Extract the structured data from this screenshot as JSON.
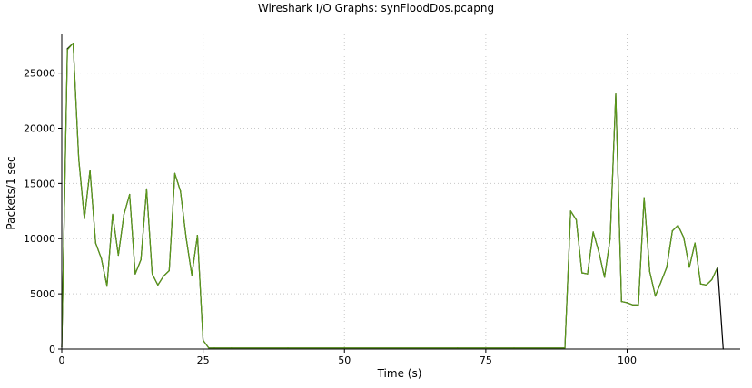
{
  "chart_data": {
    "type": "line",
    "title": "Wireshark I/O Graphs: synFloodDos.pcapng",
    "xlabel": "Time (s)",
    "ylabel": "Packets/1 sec",
    "xlim": [
      0,
      120
    ],
    "ylim": [
      0,
      28500
    ],
    "xticks": [
      "0",
      "25",
      "50",
      "75",
      "100"
    ],
    "yticks": [
      "0",
      "5000",
      "10000",
      "15000",
      "20000",
      "25000"
    ],
    "grid": true,
    "colors": {
      "all_packets": "#000000",
      "syn_packets": "#5b9a1a"
    },
    "series": [
      {
        "color_key": "all_packets",
        "x": [
          0,
          1,
          2,
          3,
          4,
          5,
          6,
          7,
          8,
          9,
          10,
          11,
          12,
          13,
          14,
          15,
          16,
          17,
          18,
          19,
          20,
          21,
          22,
          23,
          24,
          25,
          26,
          27,
          30,
          40,
          50,
          60,
          70,
          80,
          89,
          90,
          91,
          92,
          93,
          94,
          95,
          96,
          97,
          98,
          99,
          100,
          101,
          102,
          103,
          104,
          105,
          106,
          107,
          108,
          109,
          110,
          111,
          112,
          113,
          114,
          115,
          116,
          117
        ],
        "values": [
          200,
          27200,
          27700,
          17200,
          11800,
          16200,
          9600,
          8200,
          5700,
          12200,
          8500,
          12200,
          14000,
          6800,
          8100,
          14500,
          6800,
          5800,
          6600,
          7100,
          15900,
          14300,
          10100,
          6700,
          10300,
          800,
          100,
          100,
          100,
          100,
          100,
          100,
          100,
          100,
          100,
          12500,
          11700,
          6900,
          6800,
          10600,
          8800,
          6500,
          10000,
          23100,
          4300,
          4200,
          4000,
          4000,
          13700,
          7000,
          4800,
          6100,
          7400,
          10700,
          11200,
          10100,
          7400,
          9600,
          5900,
          5800,
          6300,
          7400,
          0
        ]
      },
      {
        "color_key": "syn_packets",
        "x": [
          0,
          1,
          2,
          3,
          4,
          5,
          6,
          7,
          8,
          9,
          10,
          11,
          12,
          13,
          14,
          15,
          16,
          17,
          18,
          19,
          20,
          21,
          22,
          23,
          24,
          25,
          26,
          27,
          30,
          40,
          50,
          60,
          70,
          80,
          89,
          90,
          91,
          92,
          93,
          94,
          95,
          96,
          97,
          98,
          99,
          100,
          101,
          102,
          103,
          104,
          105,
          106,
          107,
          108,
          109,
          110,
          111,
          112,
          113,
          114,
          115,
          116
        ],
        "values": [
          200,
          27100,
          27700,
          17200,
          11800,
          16200,
          9600,
          8200,
          5700,
          12200,
          8500,
          12200,
          14000,
          6800,
          8100,
          14500,
          6800,
          5800,
          6600,
          7100,
          15900,
          14300,
          10100,
          6700,
          10300,
          800,
          100,
          100,
          100,
          100,
          100,
          100,
          100,
          100,
          100,
          12500,
          11700,
          6900,
          6800,
          10600,
          8800,
          6500,
          10000,
          23100,
          4300,
          4200,
          4000,
          4000,
          13700,
          7000,
          4800,
          6100,
          7400,
          10700,
          11200,
          10100,
          7400,
          9600,
          5900,
          5800,
          6300,
          7400
        ]
      }
    ]
  }
}
